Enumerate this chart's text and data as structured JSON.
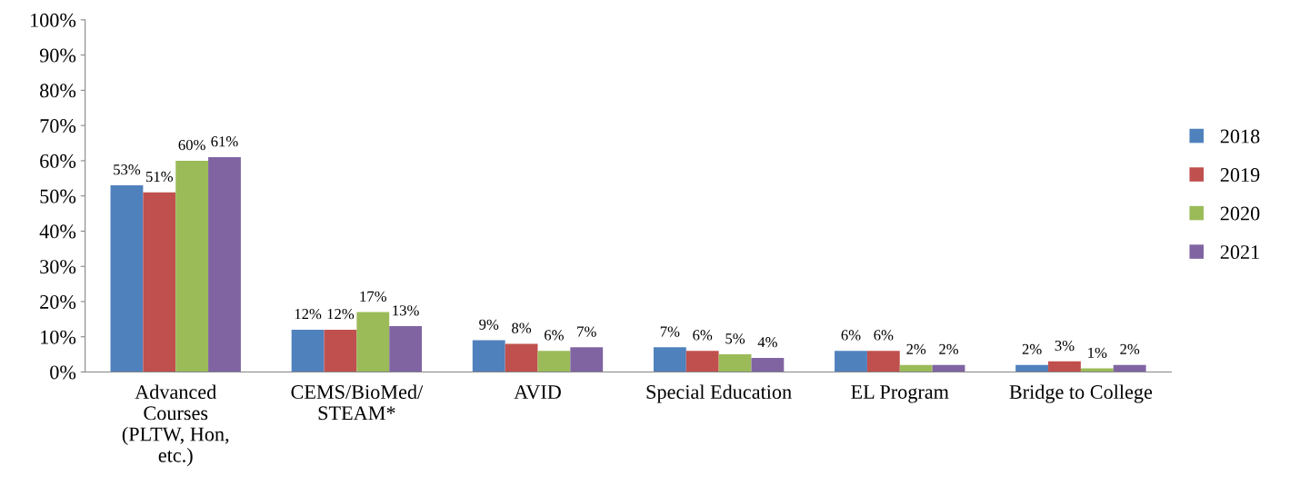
{
  "chart_data": {
    "type": "bar",
    "categories": [
      "Advanced\nCourses\n(PLTW, Hon,\netc.)",
      "CEMS/BioMed/\nSTEAM*",
      "AVID",
      "Special Education",
      "EL Program",
      "Bridge to College"
    ],
    "series": [
      {
        "name": "2018",
        "color": "#4f81bd",
        "values": [
          53,
          12,
          9,
          7,
          6,
          2
        ],
        "value_labels": [
          "53%",
          "12%",
          "9%",
          "7%",
          "6%",
          "2%"
        ]
      },
      {
        "name": "2019",
        "color": "#c0504d",
        "values": [
          51,
          12,
          8,
          6,
          6,
          3
        ],
        "value_labels": [
          "51%",
          "12%",
          "8%",
          "6%",
          "6%",
          "3%"
        ]
      },
      {
        "name": "2020",
        "color": "#9bbb59",
        "values": [
          60,
          17,
          6,
          5,
          2,
          1
        ],
        "value_labels": [
          "60%",
          "17%",
          "6%",
          "5%",
          "2%",
          "1%"
        ]
      },
      {
        "name": "2021",
        "color": "#8064a2",
        "values": [
          61,
          13,
          7,
          4,
          2,
          2
        ],
        "value_labels": [
          "61%",
          "13%",
          "7%",
          "4%",
          "2%",
          "2%"
        ]
      }
    ],
    "ylim": [
      0,
      100
    ],
    "yticks": [
      {
        "value": 0,
        "label": "0%"
      },
      {
        "value": 10,
        "label": "10%"
      },
      {
        "value": 20,
        "label": "20%"
      },
      {
        "value": 30,
        "label": "30%"
      },
      {
        "value": 40,
        "label": "40%"
      },
      {
        "value": 50,
        "label": "50%"
      },
      {
        "value": 60,
        "label": "60%"
      },
      {
        "value": 70,
        "label": "70%"
      },
      {
        "value": 80,
        "label": "80%"
      },
      {
        "value": 90,
        "label": "90%"
      },
      {
        "value": 100,
        "label": "100%"
      }
    ],
    "grid": false,
    "legend": "right"
  }
}
